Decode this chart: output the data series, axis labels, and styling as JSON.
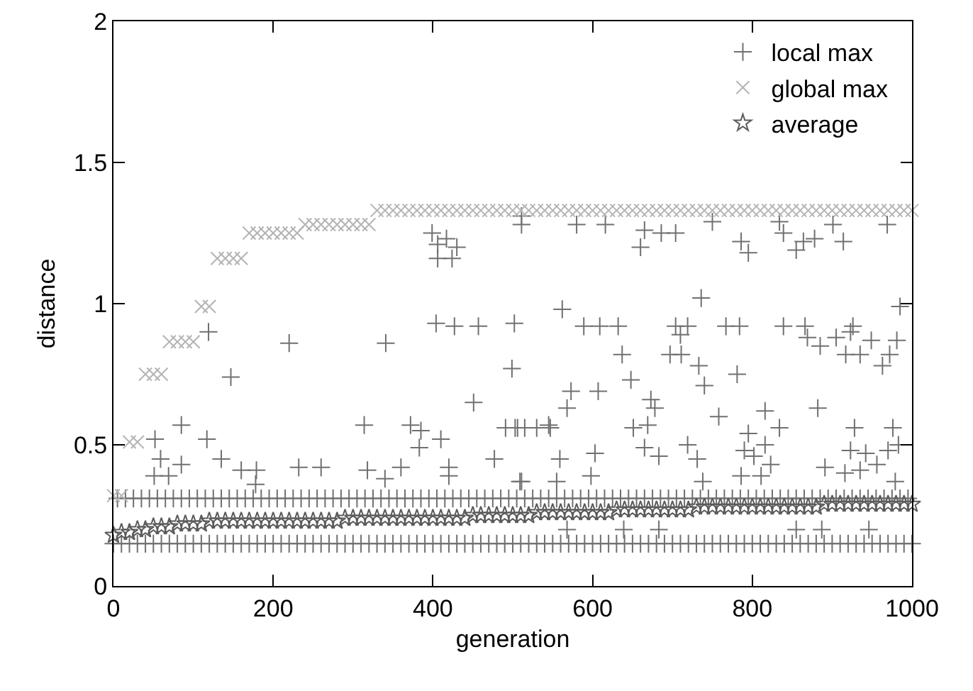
{
  "chart_data": {
    "type": "scatter",
    "xlabel": "generation",
    "ylabel": "distance",
    "xlim": [
      0,
      1000
    ],
    "xticks": [
      0,
      200,
      400,
      600,
      800,
      1000
    ],
    "ylim": [
      0,
      2
    ],
    "yticks": [
      0,
      0.5,
      1,
      1.5,
      2
    ],
    "grid": false,
    "legend": "top right",
    "series": [
      {
        "name": "local max",
        "color": "#707070",
        "marker": "cross",
        "x": [
          0,
          10,
          20,
          30,
          40,
          50,
          60,
          70,
          80,
          90,
          100,
          110,
          120,
          130,
          140,
          150,
          160,
          170,
          180,
          190,
          200,
          210,
          220,
          230,
          240,
          250,
          260,
          270,
          280,
          290,
          300,
          310,
          320,
          330,
          340,
          350,
          360,
          370,
          380,
          390,
          400,
          410,
          420,
          430,
          440,
          450,
          460,
          470,
          480,
          490,
          500,
          510,
          520,
          530,
          540,
          550,
          560,
          570,
          580,
          590,
          600,
          610,
          620,
          630,
          640,
          650,
          660,
          670,
          680,
          690,
          700,
          710,
          720,
          730,
          740,
          750,
          760,
          770,
          780,
          790,
          800,
          810,
          820,
          830,
          840,
          850,
          860,
          870,
          880,
          890,
          900,
          910,
          920,
          930,
          940,
          950,
          960,
          970,
          980,
          990,
          1000,
          5,
          15,
          25,
          35,
          45,
          55,
          65,
          75,
          85,
          95,
          105,
          115,
          125,
          135,
          145,
          155,
          165,
          175,
          185,
          195,
          205,
          215,
          225,
          235,
          245,
          255,
          265,
          275,
          285,
          295,
          305,
          315,
          325,
          335,
          345,
          355,
          365,
          375,
          385,
          395,
          405,
          415,
          425,
          435,
          445,
          455,
          465,
          475,
          485,
          495,
          505,
          515,
          525,
          535,
          545,
          555,
          565,
          575,
          585,
          595,
          605,
          615,
          625,
          635,
          645,
          655,
          665,
          675,
          685,
          695,
          705,
          715,
          725,
          735,
          745,
          755,
          765,
          775,
          785,
          795,
          805,
          815,
          825,
          835,
          845,
          855,
          865,
          875,
          885,
          895,
          905,
          915,
          925,
          935,
          945,
          955,
          965,
          975,
          985,
          995,
          52,
          85,
          119,
          117,
          59,
          85,
          51,
          69,
          135,
          147,
          160,
          179,
          178,
          220,
          232,
          260,
          314,
          318,
          340,
          341,
          360,
          372,
          385,
          383,
          410,
          420,
          420,
          399,
          417,
          406,
          406,
          430,
          424,
          404,
          427,
          457,
          502,
          451,
          477,
          499,
          491,
          503,
          515,
          530,
          511,
          511,
          511,
          580,
          616,
          665,
          686,
          704,
          660,
          750,
          786,
          795,
          834,
          839,
          855,
          864,
          878,
          901,
          914,
          969,
          736,
          562,
          985,
          589,
          609,
          632,
          704,
          719,
          710,
          767,
          784,
          839,
          866,
          869,
          885,
          905,
          926,
          923,
          949,
          981,
          637,
          697,
          711,
          917,
          935,
          972,
          733,
          740,
          781,
          963,
          648,
          573,
          607,
          568,
          673,
          678,
          882,
          816,
          506,
          545,
          547,
          651,
          669,
          758,
          834,
          928,
          976,
          983,
          795,
          816,
          719,
          790,
          802,
          923,
          942,
          970,
          559,
          603,
          665,
          683,
          731,
          823,
          891,
          916,
          935,
          956,
          598,
          786,
          811,
          509,
          555,
          738,
          979,
          568,
          639,
          683,
          855,
          887,
          946
        ],
        "values": [
          0.15,
          0.15,
          0.15,
          0.15,
          0.15,
          0.15,
          0.15,
          0.15,
          0.15,
          0.15,
          0.15,
          0.15,
          0.15,
          0.15,
          0.15,
          0.15,
          0.15,
          0.15,
          0.15,
          0.15,
          0.15,
          0.15,
          0.15,
          0.15,
          0.15,
          0.15,
          0.15,
          0.15,
          0.15,
          0.15,
          0.15,
          0.15,
          0.15,
          0.15,
          0.15,
          0.15,
          0.15,
          0.15,
          0.15,
          0.15,
          0.15,
          0.15,
          0.15,
          0.15,
          0.15,
          0.15,
          0.15,
          0.15,
          0.15,
          0.15,
          0.15,
          0.15,
          0.15,
          0.15,
          0.15,
          0.15,
          0.15,
          0.15,
          0.15,
          0.15,
          0.15,
          0.15,
          0.15,
          0.15,
          0.15,
          0.15,
          0.15,
          0.15,
          0.15,
          0.15,
          0.15,
          0.15,
          0.15,
          0.15,
          0.15,
          0.15,
          0.15,
          0.15,
          0.15,
          0.15,
          0.15,
          0.15,
          0.15,
          0.15,
          0.15,
          0.15,
          0.15,
          0.15,
          0.15,
          0.15,
          0.15,
          0.15,
          0.15,
          0.15,
          0.15,
          0.15,
          0.15,
          0.15,
          0.15,
          0.15,
          0.15,
          0.31,
          0.31,
          0.31,
          0.31,
          0.31,
          0.31,
          0.31,
          0.31,
          0.31,
          0.31,
          0.31,
          0.31,
          0.31,
          0.31,
          0.31,
          0.31,
          0.31,
          0.31,
          0.31,
          0.31,
          0.31,
          0.31,
          0.31,
          0.31,
          0.31,
          0.31,
          0.31,
          0.31,
          0.31,
          0.31,
          0.31,
          0.31,
          0.31,
          0.31,
          0.31,
          0.31,
          0.31,
          0.31,
          0.31,
          0.31,
          0.31,
          0.31,
          0.31,
          0.31,
          0.31,
          0.31,
          0.31,
          0.31,
          0.31,
          0.31,
          0.31,
          0.31,
          0.31,
          0.31,
          0.31,
          0.31,
          0.31,
          0.31,
          0.31,
          0.31,
          0.31,
          0.31,
          0.31,
          0.31,
          0.31,
          0.31,
          0.31,
          0.31,
          0.31,
          0.31,
          0.31,
          0.31,
          0.31,
          0.31,
          0.31,
          0.31,
          0.31,
          0.31,
          0.31,
          0.31,
          0.31,
          0.31,
          0.31,
          0.31,
          0.31,
          0.31,
          0.31,
          0.31,
          0.31,
          0.31,
          0.31,
          0.31,
          0.31,
          0.31,
          0.31,
          0.31,
          0.31,
          0.31,
          0.31,
          0.31,
          0.52,
          0.57,
          0.9,
          0.52,
          0.45,
          0.43,
          0.39,
          0.39,
          0.45,
          0.74,
          0.41,
          0.41,
          0.36,
          0.86,
          0.42,
          0.42,
          0.57,
          0.41,
          0.38,
          0.86,
          0.42,
          0.57,
          0.55,
          0.49,
          0.52,
          0.42,
          0.39,
          1.25,
          1.23,
          1.21,
          1.16,
          1.2,
          1.16,
          0.93,
          0.92,
          0.92,
          0.93,
          0.65,
          0.45,
          0.77,
          0.56,
          0.56,
          0.56,
          0.56,
          1.31,
          1.28,
          0.37,
          1.28,
          1.28,
          1.26,
          1.25,
          1.25,
          1.2,
          1.29,
          1.22,
          1.18,
          1.29,
          1.25,
          1.19,
          1.22,
          1.23,
          1.28,
          1.22,
          1.28,
          1.02,
          0.98,
          0.99,
          0.92,
          0.92,
          0.92,
          0.92,
          0.92,
          0.89,
          0.92,
          0.92,
          0.92,
          0.92,
          0.88,
          0.85,
          0.88,
          0.92,
          0.9,
          0.87,
          0.87,
          0.82,
          0.82,
          0.82,
          0.82,
          0.82,
          0.82,
          0.78,
          0.71,
          0.75,
          0.78,
          0.73,
          0.69,
          0.69,
          0.63,
          0.66,
          0.63,
          0.63,
          0.62,
          0.56,
          0.57,
          0.56,
          0.56,
          0.57,
          0.6,
          0.56,
          0.56,
          0.56,
          0.5,
          0.54,
          0.5,
          0.5,
          0.48,
          0.46,
          0.48,
          0.47,
          0.48,
          0.45,
          0.47,
          0.49,
          0.46,
          0.45,
          0.43,
          0.42,
          0.4,
          0.41,
          0.43,
          0.39,
          0.39,
          0.39,
          0.37,
          0.37,
          0.37,
          0.37,
          0.2,
          0.2,
          0.2,
          0.2,
          0.2,
          0.2
        ]
      },
      {
        "name": "global max",
        "color": "#b4b4b4",
        "marker": "x",
        "x": [
          0,
          10,
          20,
          30,
          40,
          50,
          60,
          70,
          80,
          90,
          100,
          110,
          120,
          130,
          140,
          150,
          160,
          170,
          180,
          190,
          200,
          210,
          220,
          230,
          240,
          250,
          260,
          270,
          280,
          290,
          300,
          310,
          320,
          330,
          340,
          350,
          360,
          370,
          380,
          390,
          400,
          410,
          420,
          430,
          440,
          450,
          460,
          470,
          480,
          490,
          500,
          510,
          520,
          530,
          540,
          550,
          560,
          570,
          580,
          590,
          600,
          610,
          620,
          630,
          640,
          650,
          660,
          670,
          680,
          690,
          700,
          710,
          720,
          730,
          740,
          750,
          760,
          770,
          780,
          790,
          800,
          810,
          820,
          830,
          840,
          850,
          860,
          870,
          880,
          890,
          900,
          910,
          920,
          930,
          940,
          950,
          960,
          970,
          980,
          990,
          1000
        ],
        "values": [
          0.32,
          0.32,
          0.51,
          0.51,
          0.75,
          0.75,
          0.75,
          0.865,
          0.865,
          0.865,
          0.865,
          0.99,
          0.99,
          1.16,
          1.16,
          1.16,
          1.16,
          1.25,
          1.25,
          1.25,
          1.25,
          1.25,
          1.25,
          1.25,
          1.28,
          1.28,
          1.28,
          1.28,
          1.28,
          1.28,
          1.28,
          1.28,
          1.28,
          1.33,
          1.33,
          1.33,
          1.33,
          1.33,
          1.33,
          1.33,
          1.33,
          1.33,
          1.33,
          1.33,
          1.33,
          1.33,
          1.33,
          1.33,
          1.33,
          1.33,
          1.33,
          1.33,
          1.33,
          1.33,
          1.33,
          1.33,
          1.33,
          1.33,
          1.33,
          1.33,
          1.33,
          1.33,
          1.33,
          1.33,
          1.33,
          1.33,
          1.33,
          1.33,
          1.33,
          1.33,
          1.33,
          1.33,
          1.33,
          1.33,
          1.33,
          1.33,
          1.33,
          1.33,
          1.33,
          1.33,
          1.33,
          1.33,
          1.33,
          1.33,
          1.33,
          1.33,
          1.33,
          1.33,
          1.33,
          1.33,
          1.33,
          1.33,
          1.33,
          1.33,
          1.33,
          1.33,
          1.33,
          1.33,
          1.33,
          1.33,
          1.33
        ]
      },
      {
        "name": "average",
        "color": "#5a5a5a",
        "marker": "star",
        "x": [
          0,
          10,
          20,
          30,
          40,
          50,
          60,
          70,
          80,
          90,
          100,
          110,
          120,
          130,
          140,
          150,
          160,
          170,
          180,
          190,
          200,
          210,
          220,
          230,
          240,
          250,
          260,
          270,
          280,
          290,
          300,
          310,
          320,
          330,
          340,
          350,
          360,
          370,
          380,
          390,
          400,
          410,
          420,
          430,
          440,
          450,
          460,
          470,
          480,
          490,
          500,
          510,
          520,
          530,
          540,
          550,
          560,
          570,
          580,
          590,
          600,
          610,
          620,
          630,
          640,
          650,
          660,
          670,
          680,
          690,
          700,
          710,
          720,
          730,
          740,
          750,
          760,
          770,
          780,
          790,
          800,
          810,
          820,
          830,
          840,
          850,
          860,
          870,
          880,
          890,
          900,
          910,
          920,
          930,
          940,
          950,
          960,
          970,
          980,
          990,
          1000
        ],
        "values": [
          0.18,
          0.19,
          0.19,
          0.2,
          0.2,
          0.21,
          0.21,
          0.21,
          0.22,
          0.22,
          0.22,
          0.22,
          0.23,
          0.23,
          0.23,
          0.23,
          0.23,
          0.23,
          0.23,
          0.23,
          0.23,
          0.23,
          0.23,
          0.23,
          0.23,
          0.23,
          0.23,
          0.23,
          0.23,
          0.24,
          0.24,
          0.24,
          0.24,
          0.24,
          0.24,
          0.24,
          0.24,
          0.24,
          0.24,
          0.24,
          0.24,
          0.24,
          0.24,
          0.24,
          0.24,
          0.25,
          0.25,
          0.25,
          0.25,
          0.25,
          0.25,
          0.25,
          0.25,
          0.26,
          0.26,
          0.26,
          0.26,
          0.26,
          0.26,
          0.26,
          0.26,
          0.26,
          0.26,
          0.27,
          0.27,
          0.27,
          0.27,
          0.27,
          0.27,
          0.27,
          0.27,
          0.27,
          0.27,
          0.28,
          0.28,
          0.28,
          0.28,
          0.28,
          0.28,
          0.28,
          0.28,
          0.28,
          0.28,
          0.28,
          0.28,
          0.28,
          0.28,
          0.28,
          0.28,
          0.29,
          0.29,
          0.29,
          0.29,
          0.29,
          0.29,
          0.29,
          0.29,
          0.29,
          0.29,
          0.29,
          0.29
        ]
      }
    ]
  }
}
